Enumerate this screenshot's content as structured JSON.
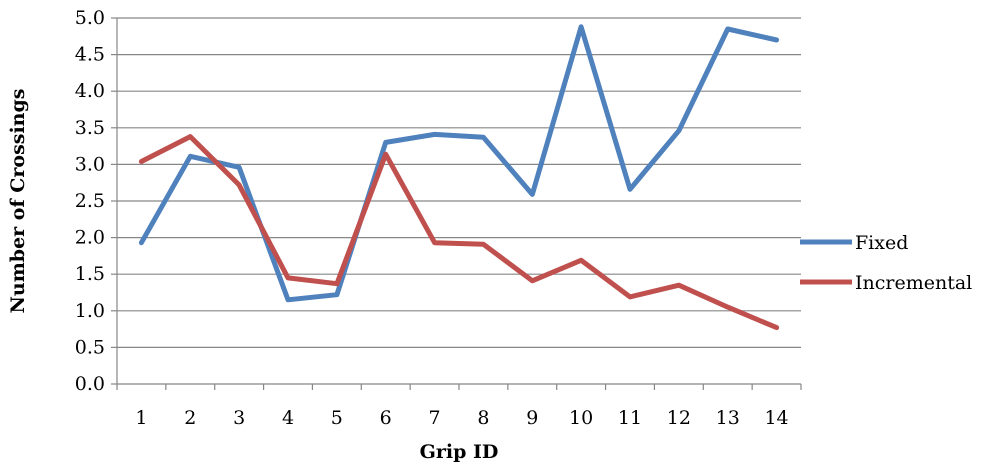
{
  "chart_data": {
    "type": "line",
    "title": "",
    "xlabel": "Grip ID",
    "ylabel": "Number of Crossings",
    "categories": [
      "1",
      "2",
      "3",
      "4",
      "5",
      "6",
      "7",
      "8",
      "9",
      "10",
      "11",
      "12",
      "13",
      "14"
    ],
    "ylim": [
      0,
      5
    ],
    "yticks": [
      "0.0",
      "0.5",
      "1.0",
      "1.5",
      "2.0",
      "2.5",
      "3.0",
      "3.5",
      "4.0",
      "4.5",
      "5.0"
    ],
    "grid": "horizontal",
    "legend_position": "right",
    "series": [
      {
        "name": "Fixed",
        "color": "#4f81bd",
        "values": [
          1.93,
          3.11,
          2.96,
          1.15,
          1.22,
          3.3,
          3.41,
          3.37,
          2.59,
          4.88,
          2.66,
          3.46,
          4.85,
          4.7
        ]
      },
      {
        "name": "Incremental",
        "color": "#c0504d",
        "values": [
          3.04,
          3.38,
          2.72,
          1.45,
          1.37,
          3.14,
          1.93,
          1.91,
          1.41,
          1.69,
          1.19,
          1.35,
          1.05,
          0.77
        ]
      }
    ]
  }
}
